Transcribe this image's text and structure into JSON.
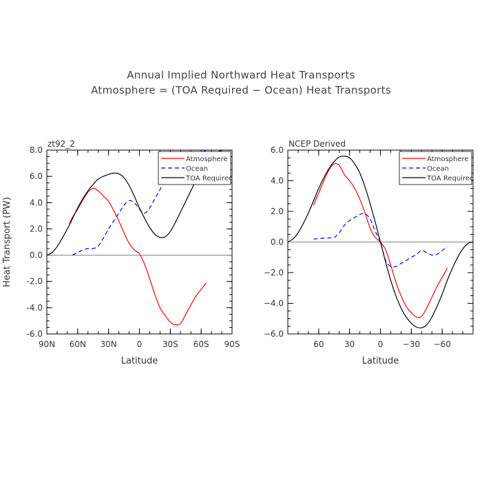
{
  "title": {
    "line1": "Annual Implied Northward Heat Transports",
    "line2": "Atmosphere = (TOA Required − Ocean) Heat Transports"
  },
  "colors": {
    "atmosphere": "#ff0000",
    "ocean": "#0000ff",
    "toa": "#000000",
    "zero_line": "#808080"
  },
  "chart_data": [
    {
      "type": "line",
      "panel_label": "zt92_2",
      "xlabel": "Latitude",
      "ylabel": "Heat Transport (PW)",
      "xlim": [
        90,
        -90
      ],
      "ylim": [
        -6,
        8
      ],
      "x_ticks": [
        90,
        60,
        30,
        0,
        -30,
        -60,
        -90
      ],
      "x_tick_labels": [
        "90N",
        "60N",
        "30N",
        "0",
        "30S",
        "60S",
        "90S"
      ],
      "y_ticks": [
        8,
        6,
        4,
        2,
        0,
        -2,
        -4,
        -6
      ],
      "y_tick_labels": [
        "8.0",
        "6.0",
        "4.0",
        "2.0",
        "0.0",
        "-2.0",
        "-4.0",
        "-6.0"
      ],
      "zero_line": true,
      "legend_position": "top-right",
      "series": [
        {
          "name": "Atmosphere",
          "style": "solid",
          "x": [
            68,
            65,
            60,
            55,
            50,
            45,
            40,
            35,
            30,
            25,
            20,
            15,
            10,
            5,
            0,
            -5,
            -10,
            -15,
            -20,
            -25,
            -30,
            -35,
            -40,
            -45,
            -50,
            -55,
            -60,
            -65
          ],
          "y": [
            2.4,
            2.9,
            3.5,
            4.2,
            4.8,
            5.1,
            4.9,
            4.5,
            4.1,
            3.4,
            2.6,
            1.7,
            0.9,
            0.4,
            0.1,
            -0.7,
            -1.8,
            -3.0,
            -4.0,
            -4.6,
            -5.1,
            -5.3,
            -5.2,
            -4.5,
            -3.8,
            -3.1,
            -2.6,
            -2.1
          ]
        },
        {
          "name": "Ocean",
          "style": "dashed",
          "x": [
            65,
            60,
            55,
            50,
            45,
            40,
            35,
            30,
            25,
            20,
            15,
            10,
            5,
            0,
            -5,
            -10,
            -15,
            -20,
            -25,
            -30,
            -35,
            -40,
            -45,
            -50,
            -55,
            -60,
            -65
          ],
          "y": [
            0.0,
            0.2,
            0.4,
            0.5,
            0.5,
            0.7,
            1.3,
            2.0,
            2.6,
            3.2,
            3.8,
            4.15,
            4.0,
            3.5,
            3.2,
            3.6,
            4.3,
            5.0,
            5.8,
            6.5,
            7.0,
            7.3,
            7.5,
            7.5,
            7.6,
            7.8,
            8.0
          ]
        },
        {
          "name": "TOA Required",
          "style": "solid",
          "x": [
            90,
            85,
            80,
            75,
            70,
            65,
            60,
            55,
            50,
            45,
            40,
            35,
            30,
            25,
            20,
            15,
            10,
            5,
            0,
            -5,
            -10,
            -15,
            -20,
            -25,
            -30,
            -35,
            -40,
            -45,
            -50,
            -55,
            -60,
            -65,
            -70,
            -75,
            -80,
            -85,
            -90
          ],
          "y": [
            0.0,
            0.2,
            0.65,
            1.3,
            2.0,
            2.8,
            3.6,
            4.3,
            4.9,
            5.4,
            5.8,
            6.0,
            6.15,
            6.25,
            6.2,
            5.9,
            5.3,
            4.5,
            3.6,
            2.8,
            2.1,
            1.6,
            1.35,
            1.4,
            1.8,
            2.5,
            3.3,
            4.1,
            4.9,
            5.7,
            6.4,
            7.0,
            7.5,
            7.8,
            8.0,
            8.0,
            8.0
          ]
        }
      ]
    },
    {
      "type": "line",
      "panel_label": "NCEP Derived",
      "xlabel": "Latitude",
      "ylabel": "",
      "xlim": [
        90,
        -90
      ],
      "ylim": [
        -6,
        6
      ],
      "x_ticks": [
        60,
        30,
        0,
        -30,
        -60
      ],
      "x_tick_labels": [
        "60",
        "30",
        "0",
        "−30",
        "−60"
      ],
      "y_ticks": [
        6,
        4,
        2,
        0,
        -2,
        -4,
        -6
      ],
      "y_tick_labels": [
        "6.0",
        "4.0",
        "2.0",
        "0.0",
        "−2.0",
        "−4.0",
        "−6.0"
      ],
      "zero_line": true,
      "legend_position": "top-right",
      "series": [
        {
          "name": "Atmosphere",
          "style": "solid",
          "x": [
            65,
            60,
            55,
            50,
            45,
            40,
            35,
            30,
            25,
            20,
            15,
            10,
            5,
            0,
            -5,
            -10,
            -15,
            -20,
            -25,
            -30,
            -35,
            -40,
            -45,
            -50,
            -55,
            -60,
            -65
          ],
          "y": [
            2.4,
            3.2,
            4.0,
            4.7,
            5.1,
            5.0,
            4.4,
            4.0,
            3.5,
            2.8,
            1.9,
            0.9,
            0.3,
            0.0,
            -0.5,
            -1.5,
            -2.6,
            -3.5,
            -4.2,
            -4.6,
            -4.9,
            -4.85,
            -4.3,
            -3.6,
            -2.9,
            -2.3,
            -1.7
          ]
        },
        {
          "name": "Ocean",
          "style": "dashed",
          "x": [
            65,
            60,
            55,
            50,
            45,
            40,
            35,
            30,
            25,
            20,
            15,
            10,
            5,
            0,
            -5,
            -10,
            -15,
            -20,
            -25,
            -30,
            -35,
            -40,
            -45,
            -50,
            -55,
            -60,
            -65
          ],
          "y": [
            0.2,
            0.22,
            0.25,
            0.27,
            0.3,
            0.6,
            1.1,
            1.4,
            1.6,
            1.8,
            1.85,
            1.5,
            0.7,
            0.0,
            -1.2,
            -1.6,
            -1.6,
            -1.4,
            -1.2,
            -1.0,
            -0.8,
            -0.55,
            -0.7,
            -0.85,
            -0.8,
            -0.55,
            -0.3
          ]
        },
        {
          "name": "TOA Required",
          "style": "solid",
          "x": [
            90,
            85,
            80,
            75,
            70,
            65,
            60,
            55,
            50,
            45,
            40,
            35,
            30,
            25,
            20,
            15,
            10,
            5,
            0,
            -5,
            -10,
            -15,
            -20,
            -25,
            -30,
            -35,
            -40,
            -45,
            -50,
            -55,
            -60,
            -65,
            -70,
            -75,
            -80,
            -85,
            -90
          ],
          "y": [
            0.0,
            0.2,
            0.6,
            1.2,
            1.9,
            2.7,
            3.5,
            4.2,
            4.8,
            5.25,
            5.55,
            5.6,
            5.5,
            5.1,
            4.5,
            3.6,
            2.5,
            1.3,
            0.0,
            -1.3,
            -2.5,
            -3.5,
            -4.3,
            -4.9,
            -5.3,
            -5.55,
            -5.6,
            -5.4,
            -4.9,
            -4.2,
            -3.4,
            -2.5,
            -1.7,
            -1.0,
            -0.45,
            -0.1,
            0.0
          ]
        }
      ]
    }
  ]
}
